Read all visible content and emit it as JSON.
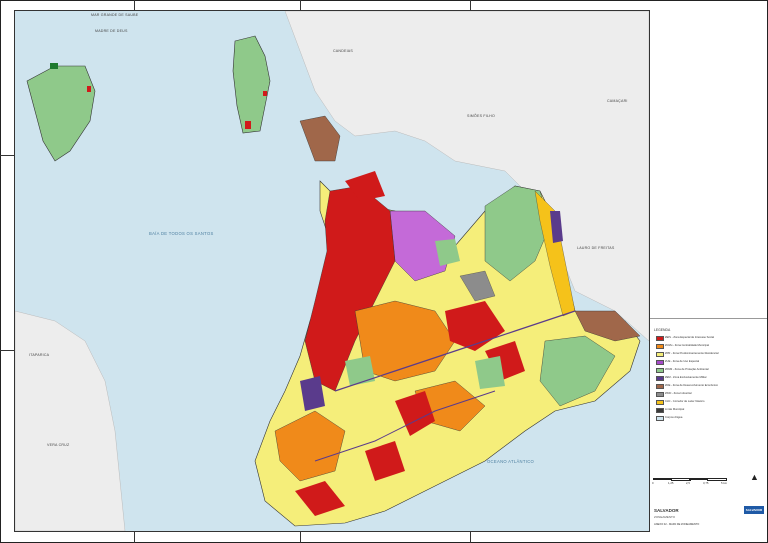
{
  "map": {
    "places": {
      "mar_grande": "MAR GRANDE DE SAUBE",
      "madre_deus": "MADRE DE DEUS",
      "candeias": "CANDEIAS",
      "simoes_filho": "SIMÕES FILHO",
      "camacari": "CAMAÇARI",
      "lauro_freitas": "LAURO DE FREITAS",
      "itaparica": "ITAPARICA",
      "vera_cruz": "VERA CRUZ"
    },
    "water": {
      "bay": "BAÍA DE TODOS OS SANTOS",
      "ocean": "OCEANO ATLÂNTICO"
    }
  },
  "legend": {
    "heading": "LEGENDA",
    "items": [
      {
        "color": "#d01a1a",
        "label": "ZEIS - Zona Especial de Interesse Social"
      },
      {
        "color": "#f08a1a",
        "label": "ZCMu - Zona Centralidade Municipal"
      },
      {
        "color": "#f5ee7a",
        "label": "ZPR - Zona Predominantemente Residencial"
      },
      {
        "color": "#a64ac9",
        "label": "ZUE - Zona de Uso Especial"
      },
      {
        "color": "#8fc98a",
        "label": "ZPAM - Zona de Proteção Ambiental"
      },
      {
        "color": "#5a3b8c",
        "label": "ZEM - Zona Exclusivamente Militar"
      },
      {
        "color": "#a0674a",
        "label": "ZDE - Zona de Desenvolvimento Econômico"
      },
      {
        "color": "#8c8c8c",
        "label": "ZIND - Zona Industrial"
      },
      {
        "color": "#f5c21a",
        "label": "CLN - Corredor de Lazer Náutico"
      },
      {
        "color": "#3a3a3a",
        "label": "Limite Municipal"
      },
      {
        "color": "#cfe4ee",
        "label": "Corpos d'água"
      }
    ]
  },
  "scale": {
    "labels": [
      "0",
      "1,25",
      "2,5",
      "3,75",
      "5 km"
    ]
  },
  "title_block": {
    "title": "SALVADOR",
    "subtitle": "ZONEAMENTO",
    "footer": "ANEXO 02 - MAPA DE ZONEAMENTO",
    "logo": "SALVADOR"
  }
}
